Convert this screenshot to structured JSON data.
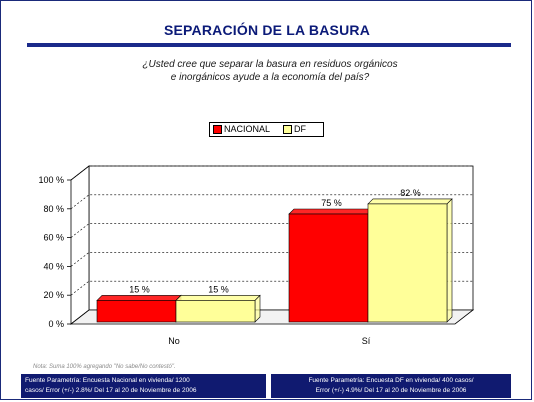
{
  "header": {
    "title": "SEPARACIÓN DE LA BASURA",
    "question_line1": "¿Usted cree que separar la basura en residuos orgánicos",
    "question_line2": "e inorgánicos ayude a la economía del país?"
  },
  "colors": {
    "title": "#0b1a78",
    "rule": "#1a2a8a",
    "series_nacional": "#ff0000",
    "series_df": "#ffff99",
    "footer_bg": "#101a70"
  },
  "chart_data": {
    "type": "bar",
    "categories": [
      "No",
      "Sí"
    ],
    "series": [
      {
        "name": "NACIONAL",
        "values": [
          15,
          75
        ],
        "labels": [
          "15 %",
          "75 %"
        ]
      },
      {
        "name": "DF",
        "values": [
          15,
          82
        ],
        "labels": [
          "15 %",
          "82 %"
        ]
      }
    ],
    "ylim": [
      0,
      100
    ],
    "yticks": [
      0,
      20,
      40,
      60,
      80,
      100
    ],
    "ytick_labels": [
      "0 %",
      "20 %",
      "40 %",
      "60 %",
      "80 %",
      "100 %"
    ],
    "grid": true,
    "legend_position": "top-center"
  },
  "note": "Nota: Suma 100% agregando \"No sabe/No contestó\".",
  "footer": {
    "left_line1": "Fuente Parametría: Encuesta Nacional en vivienda/ 1200",
    "left_line2": "casos/ Error (+/-) 2.8%/ Del 17 al 20 de Noviembre de 2006",
    "right_line1": "Fuente Parametría: Encuesta DF en vivienda/ 400 casos/",
    "right_line2": "Error (+/-) 4.9%/ Del 17 al 20 de Noviembre de 2006"
  }
}
